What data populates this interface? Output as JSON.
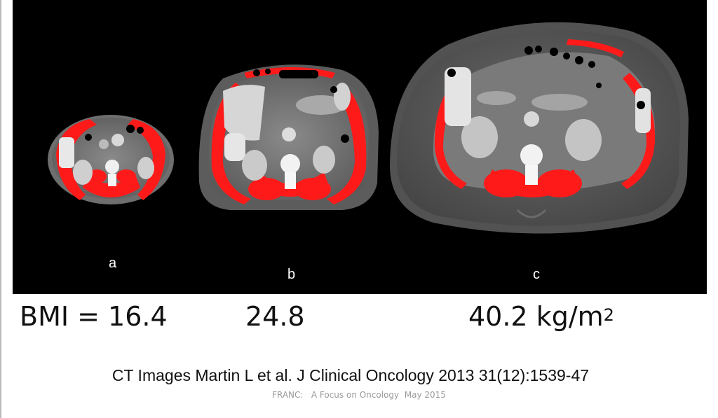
{
  "slide": {
    "background": "#ffffff",
    "panel_background": "#000000",
    "muscle_highlight_color": "#ff0000"
  },
  "scans": [
    {
      "label": "a",
      "bmi_text": "BMI = 16.4"
    },
    {
      "label": "b",
      "bmi_text": "24.8"
    },
    {
      "label": "c",
      "bmi_text": "40.2 kg/m",
      "bmi_superscript": "2"
    }
  ],
  "citation": "CT Images Martin L et al. J Clinical Oncology 2013 31(12):1539-47",
  "footer": "FRANC:   A Focus on Oncology  May 2015"
}
